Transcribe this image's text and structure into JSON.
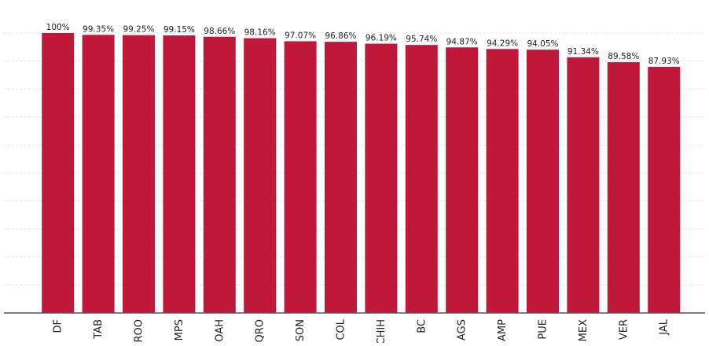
{
  "chart_data": {
    "type": "bar",
    "categories": [
      "DF",
      "TAB",
      "ROO",
      "MPS",
      "OAH",
      "QRO",
      "SON",
      "COL",
      "CHIH",
      "BC",
      "AGS",
      "AMP",
      "PUE",
      "MEX",
      "VER",
      "JAL"
    ],
    "values": [
      100,
      99.35,
      99.25,
      99.15,
      98.66,
      98.16,
      97.07,
      96.86,
      96.19,
      95.74,
      94.87,
      94.29,
      94.05,
      91.34,
      89.58,
      87.93
    ],
    "data_labels": [
      "100%",
      "99.35%",
      "99.25%",
      "99.15%",
      "98.66%",
      "98.16%",
      "97.07%",
      "96.86%",
      "96.19%",
      "95.74%",
      "94.87%",
      "94.29%",
      "94.05%",
      "91.34%",
      "89.58%",
      "87.93%"
    ],
    "title": "",
    "xlabel": "",
    "ylabel": "",
    "ylim": [
      0,
      100
    ],
    "grid": true,
    "bar_color": "#c0183a",
    "grid_color": "#e4e4e4",
    "axis_color": "#555555"
  }
}
